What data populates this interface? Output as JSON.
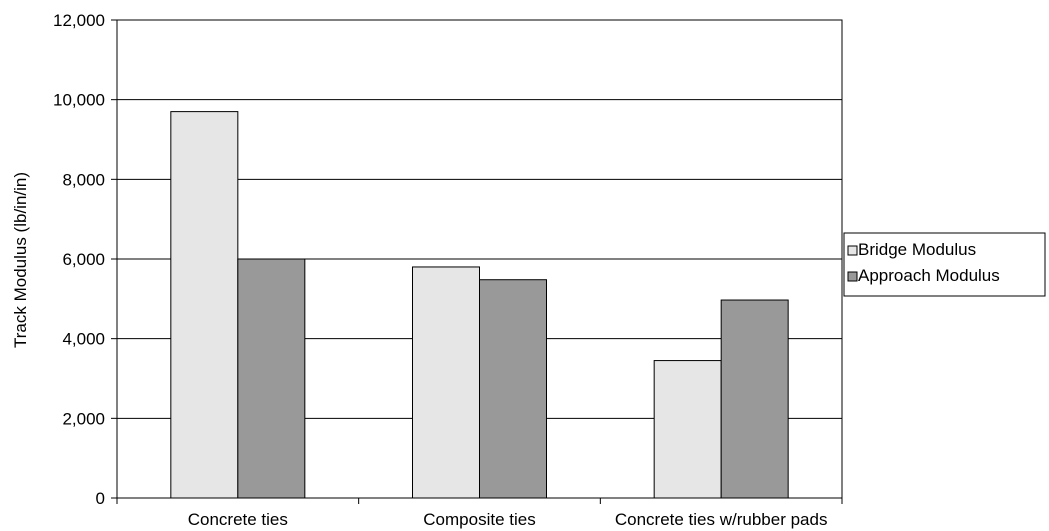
{
  "chart_data": {
    "type": "bar",
    "title": "",
    "xlabel": "",
    "ylabel": "Track Modulus (lb/in/in)",
    "categories": [
      "Concrete ties",
      "Composite ties",
      "Concrete ties w/rubber pads"
    ],
    "series": [
      {
        "name": "Bridge Modulus",
        "values": [
          9700,
          5800,
          3450
        ],
        "color": "#e6e6e6"
      },
      {
        "name": "Approach Modulus",
        "values": [
          6000,
          5480,
          4970
        ],
        "color": "#999999"
      }
    ],
    "ylim": [
      0,
      12000
    ],
    "yticks": [
      0,
      2000,
      4000,
      6000,
      8000,
      10000,
      12000
    ],
    "ytick_labels": [
      "0",
      "2,000",
      "4,000",
      "6,000",
      "8,000",
      "10,000",
      "12,000"
    ],
    "grid": true,
    "legend_position": "right"
  }
}
